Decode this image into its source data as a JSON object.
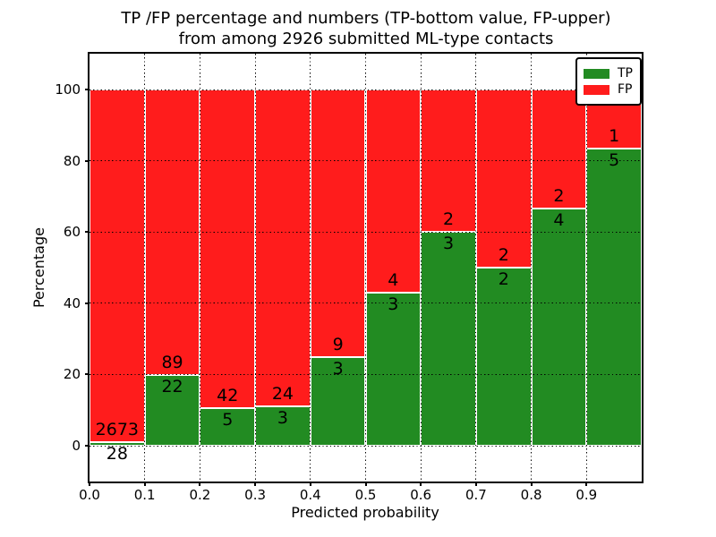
{
  "title": {
    "line1": "TP /FP percentage and numbers (TP-bottom value, FP-upper)",
    "line2": "from among 2926 submitted ML-type contacts"
  },
  "axes": {
    "xlabel": "Predicted probability",
    "ylabel": "Percentage",
    "x_tick_labels": [
      "0.0",
      "0.1",
      "0.2",
      "0.3",
      "0.4",
      "0.5",
      "0.6",
      "0.7",
      "0.8",
      "0.9"
    ],
    "y_tick_values": [
      0,
      20,
      40,
      60,
      80,
      100
    ],
    "xlim": [
      0.0,
      1.0
    ],
    "ylim": [
      -10,
      110
    ],
    "grid_style": "dotted"
  },
  "legend": {
    "position": "upper right",
    "items": [
      {
        "label": "TP",
        "color": "#228b22"
      },
      {
        "label": "FP",
        "color": "#ff1c1c"
      }
    ]
  },
  "chart_data": {
    "type": "bar",
    "stacked": true,
    "title": "TP /FP percentage and numbers (TP-bottom value, FP-upper) from among 2926 submitted ML-type contacts",
    "xlabel": "Predicted probability",
    "ylabel": "Percentage",
    "bin_width": 0.1,
    "bin_starts": [
      0.0,
      0.1,
      0.2,
      0.3,
      0.4,
      0.5,
      0.6,
      0.7,
      0.8,
      0.9
    ],
    "total_contacts": 2926,
    "series": [
      {
        "name": "TP",
        "color": "#228b22",
        "counts": [
          28,
          22,
          5,
          3,
          3,
          3,
          3,
          2,
          4,
          5
        ],
        "pct": [
          1.04,
          19.82,
          10.64,
          11.11,
          25.0,
          42.86,
          60.0,
          50.0,
          66.67,
          83.33
        ]
      },
      {
        "name": "FP",
        "color": "#ff1c1c",
        "counts": [
          2673,
          89,
          42,
          24,
          9,
          4,
          2,
          2,
          2,
          1
        ],
        "pct": [
          98.96,
          80.18,
          89.36,
          88.89,
          75.0,
          57.14,
          40.0,
          50.0,
          33.33,
          16.67
        ]
      }
    ],
    "label_rule": "TP count printed below the TP/FP boundary, FP count printed above it",
    "legend_position": "upper right",
    "grid": "dotted",
    "ylim": [
      -10,
      110
    ],
    "y_ticks": [
      0,
      20,
      40,
      60,
      80,
      100
    ],
    "x_ticks": [
      0.0,
      0.1,
      0.2,
      0.3,
      0.4,
      0.5,
      0.6,
      0.7,
      0.8,
      0.9
    ]
  }
}
